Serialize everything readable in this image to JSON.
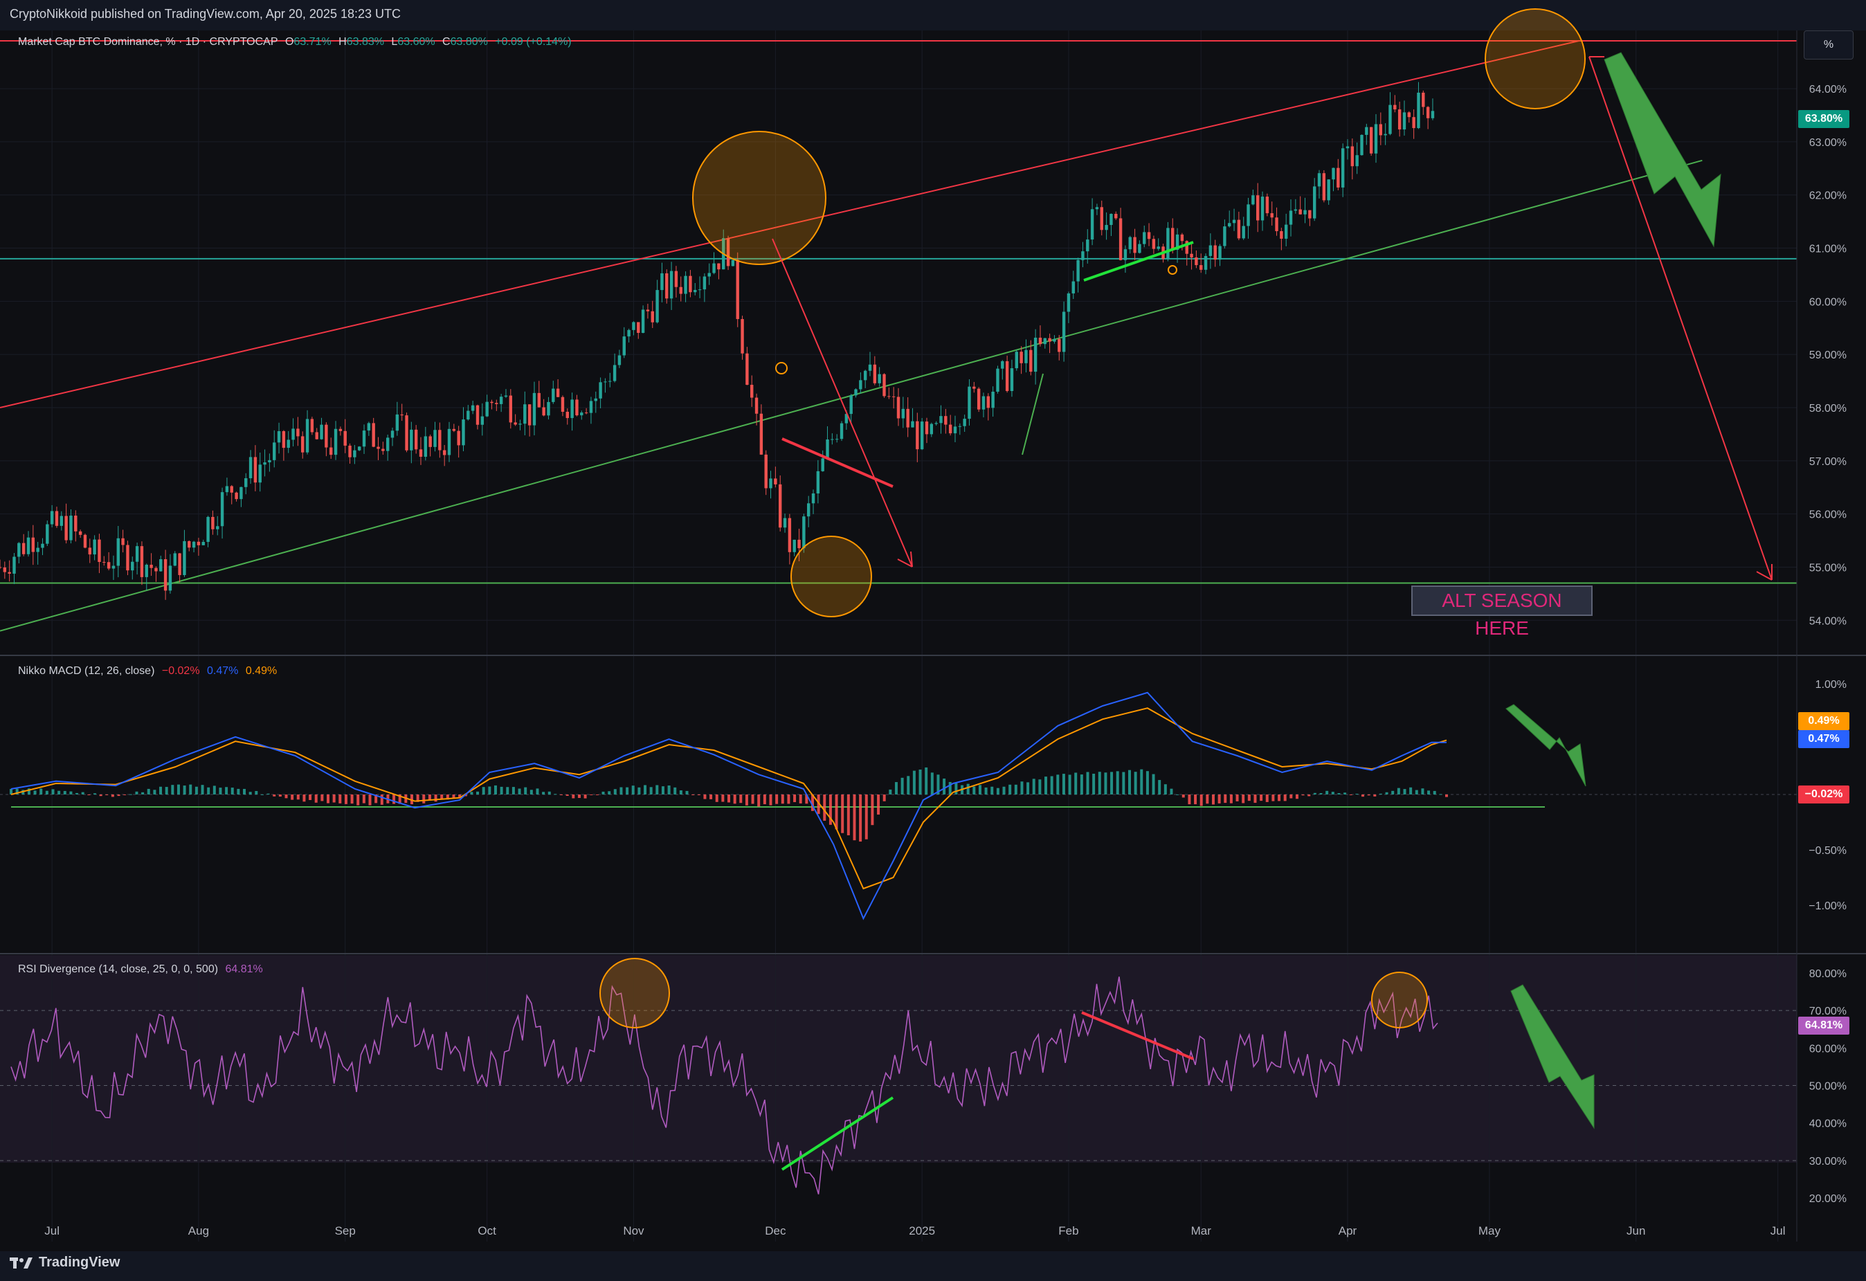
{
  "header": {
    "publisher_line": "CryptoNikkoid published on TradingView.com, Apr 20, 2025 18:23 UTC"
  },
  "price_pane": {
    "legend": {
      "symbol": "Market Cap BTC Dominance, % · 1D · CRYPTOCAP",
      "open_label": "O",
      "open": "63.71%",
      "high_label": "H",
      "high": "63.83%",
      "low_label": "L",
      "low": "63.60%",
      "close_label": "C",
      "close": "63.80%",
      "change": "+0.09 (+0.14%)"
    },
    "scale_button": "%",
    "y_ticks": [
      "64.00%",
      "63.00%",
      "62.00%",
      "61.00%",
      "60.00%",
      "59.00%",
      "58.00%",
      "57.00%",
      "56.00%",
      "55.00%",
      "54.00%"
    ],
    "last_price_tag": "63.80%",
    "annotation": "ALT SEASON HERE"
  },
  "macd_pane": {
    "legend": {
      "name": "Nikko MACD (12, 26, close)",
      "hist": "−0.02%",
      "macd": "0.47%",
      "signal": "0.49%"
    },
    "y_ticks": [
      "1.00%",
      "0.50%",
      "−0.50%",
      "−1.00%"
    ],
    "tags": {
      "signal": "0.49%",
      "macd": "0.47%",
      "hist": "−0.02%"
    }
  },
  "rsi_pane": {
    "legend": {
      "name": "RSI Divergence (14, close, 25, 0, 0, 500)",
      "value": "64.81%"
    },
    "y_ticks": [
      "80.00%",
      "70.00%",
      "60.00%",
      "50.00%",
      "40.00%",
      "30.00%",
      "20.00%"
    ],
    "tag": "64.81%"
  },
  "x_axis": {
    "labels": [
      "Jul",
      "Aug",
      "Sep",
      "Oct",
      "Nov",
      "Dec",
      "2025",
      "Feb",
      "Mar",
      "Apr",
      "May",
      "Jun",
      "Jul"
    ]
  },
  "footer": {
    "brand": "TradingView"
  },
  "colors": {
    "up": "#26a69a",
    "down": "#ef5350",
    "resistance": "#f23645",
    "support": "#4caf50",
    "macd": "#2962ff",
    "signal": "#ff9800",
    "rsi": "#b05bbf",
    "annotation_text": "#e0287a",
    "circle": "#ff9800",
    "background": "#0e0f13"
  },
  "chart_data": [
    {
      "type": "candlestick",
      "title": "Market Cap BTC Dominance, % · 1D · CRYPTOCAP",
      "ylabel": "%",
      "ylim": [
        53.6,
        64.6
      ],
      "x_months": [
        "Jul",
        "Aug",
        "Sep",
        "Oct",
        "Nov",
        "Dec",
        "2025",
        "Feb",
        "Mar",
        "Apr",
        "May",
        "Jun",
        "Jul"
      ],
      "x_range": [
        "2024-06-20",
        "2025-07-05"
      ],
      "ohlc_last": {
        "open": 63.71,
        "high": 63.83,
        "low": 63.6,
        "close": 63.8,
        "change": 0.09,
        "change_pct": 0.14
      },
      "close_series": [
        [
          "2024-06-20",
          55.0
        ],
        [
          "2024-06-27",
          55.6
        ],
        [
          "2024-07-04",
          55.8
        ],
        [
          "2024-07-11",
          55.1
        ],
        [
          "2024-07-18",
          55.3
        ],
        [
          "2024-07-25",
          54.8
        ],
        [
          "2024-08-01",
          55.6
        ],
        [
          "2024-08-08",
          56.5
        ],
        [
          "2024-08-15",
          57.0
        ],
        [
          "2024-08-22",
          57.5
        ],
        [
          "2024-08-29",
          57.3
        ],
        [
          "2024-09-05",
          57.4
        ],
        [
          "2024-09-12",
          57.6
        ],
        [
          "2024-09-19",
          57.2
        ],
        [
          "2024-09-26",
          57.6
        ],
        [
          "2024-10-03",
          58.2
        ],
        [
          "2024-10-10",
          57.9
        ],
        [
          "2024-10-17",
          58.1
        ],
        [
          "2024-10-24",
          58.2
        ],
        [
          "2024-10-31",
          59.3
        ],
        [
          "2024-11-07",
          60.2
        ],
        [
          "2024-11-14",
          60.5
        ],
        [
          "2024-11-21",
          61.0
        ],
        [
          "2024-11-28",
          57.0
        ],
        [
          "2024-12-05",
          55.2
        ],
        [
          "2024-12-12",
          57.2
        ],
        [
          "2024-12-19",
          58.8
        ],
        [
          "2024-12-26",
          58.0
        ],
        [
          "2025-01-02",
          57.3
        ],
        [
          "2025-01-09",
          58.0
        ],
        [
          "2025-01-16",
          58.4
        ],
        [
          "2025-01-23",
          58.9
        ],
        [
          "2025-01-30",
          59.3
        ],
        [
          "2025-02-06",
          61.8
        ],
        [
          "2025-02-13",
          61.0
        ],
        [
          "2025-02-20",
          61.2
        ],
        [
          "2025-02-27",
          60.7
        ],
        [
          "2025-03-06",
          61.3
        ],
        [
          "2025-03-13",
          61.8
        ],
        [
          "2025-03-20",
          61.4
        ],
        [
          "2025-03-27",
          62.2
        ],
        [
          "2025-04-03",
          62.8
        ],
        [
          "2025-04-10",
          63.4
        ],
        [
          "2025-04-20",
          63.8
        ]
      ],
      "levels": [
        {
          "label": "resistance",
          "value": 64.9
        },
        {
          "label": "mid",
          "value": 60.8
        },
        {
          "label": "support",
          "value": 54.7
        }
      ],
      "trendlines": [
        {
          "color": "resistance",
          "from": [
            "2024-06-20",
            58.0
          ],
          "to": [
            "2025-05-20",
            64.9
          ]
        },
        {
          "color": "support",
          "from": [
            "2024-06-20",
            53.8
          ],
          "to": [
            "2025-06-15",
            62.65
          ]
        }
      ],
      "projection": [
        [
          "2025-05-22",
          64.9
        ],
        [
          "2025-07-02",
          54.7
        ]
      ],
      "annotations": [
        {
          "text": "ALT SEASON HERE",
          "at": [
            "2025-05-15",
            54.1
          ]
        }
      ]
    },
    {
      "type": "line",
      "title": "Nikko MACD (12, 26, close)",
      "ylim": [
        -1.2,
        1.05
      ],
      "last": {
        "histogram": -0.02,
        "macd": 0.47,
        "signal": 0.49
      },
      "series": [
        {
          "name": "MACD",
          "values": [
            [
              0,
              0.05
            ],
            [
              30,
              0.12
            ],
            [
              70,
              0.08
            ],
            [
              110,
              0.32
            ],
            [
              150,
              0.52
            ],
            [
              190,
              0.35
            ],
            [
              230,
              0.05
            ],
            [
              270,
              -0.12
            ],
            [
              300,
              -0.05
            ],
            [
              320,
              0.2
            ],
            [
              350,
              0.28
            ],
            [
              380,
              0.15
            ],
            [
              410,
              0.35
            ],
            [
              440,
              0.5
            ],
            [
              470,
              0.36
            ],
            [
              500,
              0.18
            ],
            [
              530,
              0.05
            ],
            [
              550,
              -0.45
            ],
            [
              570,
              -1.12
            ],
            [
              590,
              -0.6
            ],
            [
              610,
              -0.05
            ],
            [
              630,
              0.1
            ],
            [
              660,
              0.2
            ],
            [
              700,
              0.62
            ],
            [
              730,
              0.8
            ],
            [
              760,
              0.92
            ],
            [
              790,
              0.48
            ],
            [
              820,
              0.35
            ],
            [
              850,
              0.2
            ],
            [
              880,
              0.3
            ],
            [
              910,
              0.22
            ],
            [
              930,
              0.35
            ],
            [
              950,
              0.47
            ],
            [
              960,
              0.47
            ]
          ]
        },
        {
          "name": "Signal",
          "values": [
            [
              0,
              0.0
            ],
            [
              30,
              0.1
            ],
            [
              70,
              0.09
            ],
            [
              110,
              0.25
            ],
            [
              150,
              0.48
            ],
            [
              190,
              0.38
            ],
            [
              230,
              0.12
            ],
            [
              270,
              -0.06
            ],
            [
              300,
              -0.03
            ],
            [
              320,
              0.14
            ],
            [
              350,
              0.24
            ],
            [
              380,
              0.18
            ],
            [
              410,
              0.3
            ],
            [
              440,
              0.45
            ],
            [
              470,
              0.4
            ],
            [
              500,
              0.25
            ],
            [
              530,
              0.1
            ],
            [
              550,
              -0.25
            ],
            [
              570,
              -0.85
            ],
            [
              590,
              -0.75
            ],
            [
              610,
              -0.25
            ],
            [
              630,
              0.02
            ],
            [
              660,
              0.15
            ],
            [
              700,
              0.5
            ],
            [
              730,
              0.68
            ],
            [
              760,
              0.78
            ],
            [
              790,
              0.55
            ],
            [
              820,
              0.4
            ],
            [
              850,
              0.25
            ],
            [
              880,
              0.28
            ],
            [
              910,
              0.23
            ],
            [
              930,
              0.3
            ],
            [
              950,
              0.45
            ],
            [
              960,
              0.49
            ]
          ]
        },
        {
          "name": "Histogram",
          "values": [
            [
              0,
              0.05
            ],
            [
              30,
              0.04
            ],
            [
              70,
              -0.02
            ],
            [
              110,
              0.09
            ],
            [
              150,
              0.06
            ],
            [
              190,
              -0.05
            ],
            [
              230,
              -0.09
            ],
            [
              270,
              -0.08
            ],
            [
              300,
              -0.03
            ],
            [
              320,
              0.08
            ],
            [
              350,
              0.05
            ],
            [
              380,
              -0.04
            ],
            [
              410,
              0.07
            ],
            [
              440,
              0.08
            ],
            [
              470,
              -0.06
            ],
            [
              500,
              -0.1
            ],
            [
              530,
              -0.07
            ],
            [
              550,
              -0.3
            ],
            [
              570,
              -0.45
            ],
            [
              590,
              0.1
            ],
            [
              610,
              0.25
            ],
            [
              630,
              0.1
            ],
            [
              660,
              0.06
            ],
            [
              700,
              0.18
            ],
            [
              730,
              0.2
            ],
            [
              760,
              0.22
            ],
            [
              790,
              -0.1
            ],
            [
              820,
              -0.07
            ],
            [
              850,
              -0.06
            ],
            [
              880,
              0.03
            ],
            [
              910,
              -0.02
            ],
            [
              930,
              0.06
            ],
            [
              950,
              0.04
            ],
            [
              960,
              -0.02
            ]
          ]
        }
      ]
    },
    {
      "type": "line",
      "title": "RSI Divergence (14, close, 25, 0, 0, 500)",
      "ylim": [
        18,
        82
      ],
      "last": 64.81,
      "series": [
        {
          "name": "RSI",
          "values": [
            [
              0,
              52
            ],
            [
              15,
              60
            ],
            [
              30,
              65
            ],
            [
              45,
              55
            ],
            [
              60,
              42
            ],
            [
              75,
              50
            ],
            [
              90,
              63
            ],
            [
              105,
              68
            ],
            [
              120,
              55
            ],
            [
              135,
              48
            ],
            [
              150,
              58
            ],
            [
              165,
              46
            ],
            [
              180,
              57
            ],
            [
              195,
              70
            ],
            [
              210,
              60
            ],
            [
              225,
              53
            ],
            [
              240,
              58
            ],
            [
              255,
              70
            ],
            [
              270,
              65
            ],
            [
              285,
              58
            ],
            [
              300,
              60
            ],
            [
              315,
              52
            ],
            [
              330,
              57
            ],
            [
              345,
              72
            ],
            [
              360,
              58
            ],
            [
              375,
              52
            ],
            [
              390,
              60
            ],
            [
              405,
              75
            ],
            [
              420,
              60
            ],
            [
              435,
              40
            ],
            [
              450,
              58
            ],
            [
              465,
              60
            ],
            [
              480,
              55
            ],
            [
              495,
              50
            ],
            [
              510,
              33
            ],
            [
              525,
              28
            ],
            [
              540,
              25
            ],
            [
              555,
              35
            ],
            [
              570,
              42
            ],
            [
              585,
              50
            ],
            [
              600,
              64
            ],
            [
              615,
              55
            ],
            [
              630,
              48
            ],
            [
              645,
              52
            ],
            [
              660,
              48
            ],
            [
              675,
              58
            ],
            [
              690,
              60
            ],
            [
              705,
              62
            ],
            [
              720,
              67
            ],
            [
              735,
              75
            ],
            [
              750,
              70
            ],
            [
              765,
              58
            ],
            [
              780,
              55
            ],
            [
              795,
              60
            ],
            [
              810,
              50
            ],
            [
              825,
              62
            ],
            [
              840,
              56
            ],
            [
              855,
              58
            ],
            [
              870,
              52
            ],
            [
              885,
              55
            ],
            [
              900,
              62
            ],
            [
              915,
              72
            ],
            [
              930,
              68
            ],
            [
              945,
              70
            ],
            [
              955,
              64.81
            ]
          ]
        }
      ],
      "bands": [
        70,
        50,
        30
      ]
    }
  ]
}
